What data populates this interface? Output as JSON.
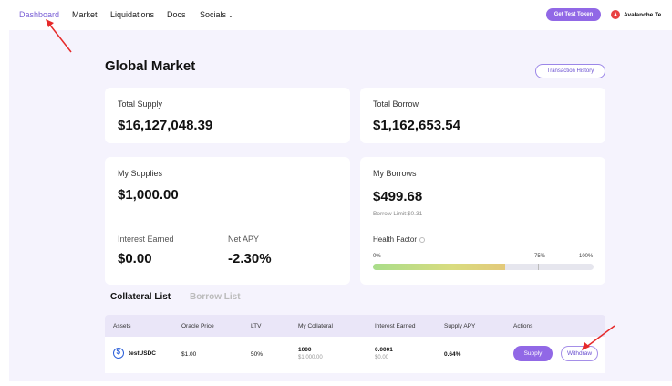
{
  "nav": {
    "items": [
      {
        "label": "Dashboard",
        "active": true
      },
      {
        "label": "Market"
      },
      {
        "label": "Liquidations"
      },
      {
        "label": "Docs"
      },
      {
        "label": "Socials",
        "icon": "chevron-down-icon"
      }
    ],
    "faucet_label": "Get Test Token",
    "network_label": "Avalanche Te"
  },
  "page": {
    "title": "Global Market",
    "tx_history_label": "Transaction History"
  },
  "global": {
    "total_supply_label": "Total Supply",
    "total_supply_value": "$16,127,048.39",
    "total_borrow_label": "Total Borrow",
    "total_borrow_value": "$1,162,653.54"
  },
  "my_supplies": {
    "label": "My Supplies",
    "value": "$1,000.00",
    "interest_label": "Interest Earned",
    "interest_value": "$0.00",
    "apy_label": "Net APY",
    "apy_value": "-2.30%"
  },
  "my_borrows": {
    "label": "My Borrows",
    "value": "$499.68",
    "borrow_limit": "Borrow Limit:$0.31",
    "health_label": "Health Factor",
    "health_level": 0.6,
    "scale": {
      "start": "0%",
      "mid": "75%",
      "end": "100%"
    }
  },
  "tabs": [
    "Collateral List",
    "Borrow List"
  ],
  "table": {
    "headers": [
      "Assets",
      "Oracle Price",
      "LTV",
      "My Collateral",
      "Interest Earned",
      "Supply APY",
      "Actions"
    ],
    "rows": [
      {
        "asset": "testUSDC",
        "oracle_price": "$1.00",
        "ltv": "50%",
        "collateral": "1000",
        "collateral_usd": "$1,000.00",
        "interest": "0.0001",
        "interest_usd": "$0.00",
        "apy": "0.64%",
        "supply_label": "Supply",
        "withdraw_label": "Withdraw"
      }
    ]
  },
  "colors": {
    "accent": "#9168e6",
    "annotation": "#e62a2a"
  }
}
